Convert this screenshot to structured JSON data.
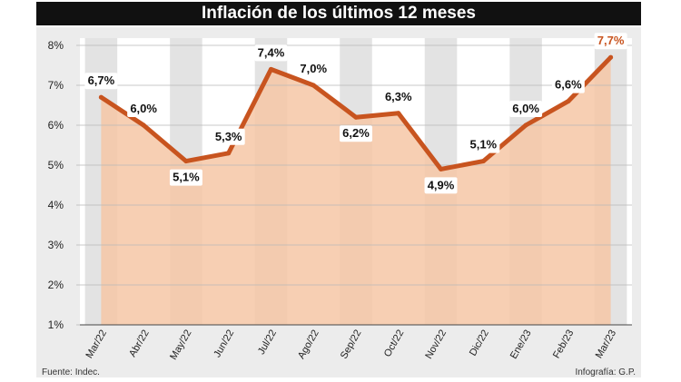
{
  "title": "Inflación de los últimos 12 meses",
  "source": "Fuente: Indec.",
  "credit": "Infografía: G.P.",
  "colors": {
    "line": "#c8541f",
    "fill": "#f6c7a6",
    "column_shade": "#e3e3e3",
    "last_label": "#c8541f"
  },
  "chart_data": {
    "type": "line",
    "categories": [
      "Mar/22",
      "Abr/22",
      "May/22",
      "Jun/22",
      "Jul/22",
      "Ago/22",
      "Sep/22",
      "Oct/22",
      "Nov/22",
      "Dic/22",
      "Ene/23",
      "Feb/23",
      "Mar/23"
    ],
    "values": [
      6.7,
      6.0,
      5.1,
      5.3,
      7.4,
      7.0,
      6.2,
      6.3,
      4.9,
      5.1,
      6.0,
      6.6,
      7.7
    ],
    "data_labels": [
      "6,7%",
      "6,0%",
      "5,1%",
      "5,3%",
      "7,4%",
      "7,0%",
      "6,2%",
      "6,3%",
      "4,9%",
      "5,1%",
      "6,0%",
      "6,6%",
      "7,7%"
    ],
    "yticks": [
      1,
      2,
      3,
      4,
      5,
      6,
      7,
      8
    ],
    "ytick_labels": [
      "1%",
      "2%",
      "3%",
      "4%",
      "5%",
      "6%",
      "7%",
      "8%"
    ],
    "ylim": [
      1,
      8
    ],
    "area_fill": true,
    "grid": "horizontal"
  }
}
